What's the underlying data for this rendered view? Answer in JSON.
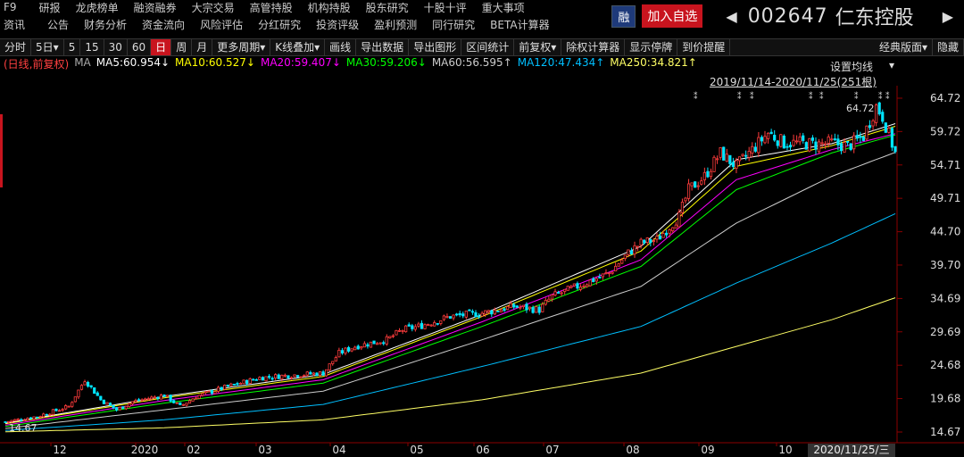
{
  "header": {
    "nav_row1": [
      "F9",
      "研报",
      "龙虎榜单",
      "融资融券",
      "大宗交易",
      "高管持股",
      "机构持股",
      "股东研究",
      "十股十评",
      "重大事项"
    ],
    "nav_row2": [
      "资讯",
      "公告",
      "财务分析",
      "资金流向",
      "风险评估",
      "分红研究",
      "投资评级",
      "盈利预测",
      "同行研究",
      "BETA计算器"
    ],
    "badge": "融",
    "add_fav": "加入自选",
    "prev_arrow": "◀",
    "next_arrow": "▶",
    "stock_code": "002647",
    "stock_name": "仁东控股"
  },
  "toolbar": {
    "items": [
      "分时",
      "5日▾",
      "5",
      "15",
      "30",
      "60",
      "日",
      "周",
      "月",
      "更多周期▾",
      "K线叠加▾",
      "画线",
      "导出数据",
      "导出图形",
      "区间统计",
      "前复权▾",
      "除权计算器",
      "显示停牌",
      "到价提醒"
    ],
    "active": "日",
    "right_items": [
      "经典版面▾",
      "隐藏"
    ]
  },
  "legend": {
    "label": "(日线,前复权)",
    "ma": "MA",
    "items": [
      {
        "text": "MA5:60.954↓",
        "color": "#ffffff"
      },
      {
        "text": "MA10:60.527↓",
        "color": "#ffff00"
      },
      {
        "text": "MA20:59.407↓",
        "color": "#ff00ff"
      },
      {
        "text": "MA30:59.206↓",
        "color": "#00ff00"
      },
      {
        "text": "MA60:56.595↑",
        "color": "#cccccc"
      },
      {
        "text": "MA120:47.434↑",
        "color": "#00bfff"
      },
      {
        "text": "MA250:34.821↑",
        "color": "#ffff66"
      }
    ]
  },
  "controls": {
    "set_ma": "设置均线",
    "set_ma_arrow": "▾",
    "range": "2019/11/14-2020/11/25(251根)"
  },
  "chart_data": {
    "type": "candlestick",
    "yticks": [
      "64.72",
      "59.72",
      "54.71",
      "49.71",
      "44.70",
      "39.70",
      "34.69",
      "29.69",
      "24.68",
      "19.68",
      "14.67"
    ],
    "ylim": [
      14.67,
      64.72
    ],
    "xticks": [
      "12",
      "2020",
      "02",
      "03",
      "04",
      "05",
      "06",
      "07",
      "08",
      "09",
      "10"
    ],
    "current_date": "2020/11/25/三",
    "high_label": "64.72",
    "low_label": "14.67",
    "close_points": [
      [
        0,
        16.2
      ],
      [
        10,
        17.0
      ],
      [
        20,
        18.5
      ],
      [
        25,
        22.5
      ],
      [
        30,
        19.5
      ],
      [
        35,
        18.0
      ],
      [
        40,
        19.2
      ],
      [
        50,
        20.2
      ],
      [
        55,
        18.5
      ],
      [
        60,
        20.0
      ],
      [
        70,
        21.5
      ],
      [
        80,
        22.8
      ],
      [
        90,
        23.2
      ],
      [
        100,
        23.5
      ],
      [
        105,
        26.5
      ],
      [
        110,
        27.5
      ],
      [
        120,
        28.5
      ],
      [
        125,
        30.0
      ],
      [
        130,
        30.5
      ],
      [
        140,
        32.0
      ],
      [
        150,
        32.5
      ],
      [
        160,
        33.5
      ],
      [
        168,
        33.0
      ],
      [
        172,
        35.0
      ],
      [
        180,
        36.5
      ],
      [
        190,
        38.5
      ],
      [
        196,
        41.5
      ],
      [
        200,
        43.0
      ],
      [
        205,
        43.5
      ],
      [
        212,
        47.0
      ],
      [
        215,
        51.0
      ],
      [
        220,
        53.0
      ],
      [
        225,
        56.5
      ],
      [
        230,
        54.5
      ],
      [
        235,
        57.0
      ],
      [
        240,
        59.5
      ],
      [
        245,
        58.0
      ],
      [
        250,
        58.0
      ],
      [
        255,
        57.8
      ],
      [
        260,
        58.0
      ],
      [
        265,
        57.5
      ],
      [
        270,
        59.0
      ],
      [
        274,
        63.5
      ],
      [
        276,
        62.0
      ],
      [
        280,
        56.5
      ]
    ],
    "ma_series": [
      {
        "name": "MA5",
        "color": "#ffffff",
        "points": [
          [
            0,
            16.0
          ],
          [
            50,
            20.0
          ],
          [
            100,
            23.3
          ],
          [
            150,
            32.3
          ],
          [
            200,
            42.5
          ],
          [
            230,
            55.5
          ],
          [
            260,
            57.9
          ],
          [
            280,
            60.9
          ]
        ]
      },
      {
        "name": "MA10",
        "color": "#ffff00",
        "points": [
          [
            0,
            15.9
          ],
          [
            50,
            19.8
          ],
          [
            100,
            23.0
          ],
          [
            150,
            32.0
          ],
          [
            200,
            41.8
          ],
          [
            230,
            54.5
          ],
          [
            260,
            57.6
          ],
          [
            280,
            60.5
          ]
        ]
      },
      {
        "name": "MA20",
        "color": "#ff00ff",
        "points": [
          [
            0,
            15.7
          ],
          [
            50,
            19.4
          ],
          [
            100,
            22.5
          ],
          [
            150,
            31.2
          ],
          [
            200,
            40.5
          ],
          [
            230,
            52.5
          ],
          [
            260,
            57.0
          ],
          [
            280,
            59.4
          ]
        ]
      },
      {
        "name": "MA30",
        "color": "#00ff00",
        "points": [
          [
            0,
            15.5
          ],
          [
            50,
            19.0
          ],
          [
            100,
            22.0
          ],
          [
            150,
            30.5
          ],
          [
            200,
            39.5
          ],
          [
            230,
            51.0
          ],
          [
            260,
            56.5
          ],
          [
            280,
            59.2
          ]
        ]
      },
      {
        "name": "MA60",
        "color": "#cccccc",
        "points": [
          [
            0,
            15.2
          ],
          [
            50,
            18.0
          ],
          [
            100,
            20.8
          ],
          [
            150,
            28.5
          ],
          [
            200,
            36.5
          ],
          [
            230,
            46.0
          ],
          [
            260,
            53.0
          ],
          [
            280,
            56.6
          ]
        ]
      },
      {
        "name": "MA120",
        "color": "#00bfff",
        "points": [
          [
            0,
            14.9
          ],
          [
            50,
            16.5
          ],
          [
            100,
            18.8
          ],
          [
            150,
            24.5
          ],
          [
            200,
            30.5
          ],
          [
            230,
            37.0
          ],
          [
            260,
            43.0
          ],
          [
            280,
            47.4
          ]
        ]
      },
      {
        "name": "MA250",
        "color": "#ffff66",
        "points": [
          [
            0,
            14.7
          ],
          [
            50,
            15.3
          ],
          [
            100,
            16.5
          ],
          [
            150,
            19.5
          ],
          [
            200,
            23.5
          ],
          [
            230,
            27.5
          ],
          [
            260,
            31.5
          ],
          [
            280,
            34.8
          ]
        ]
      }
    ]
  }
}
